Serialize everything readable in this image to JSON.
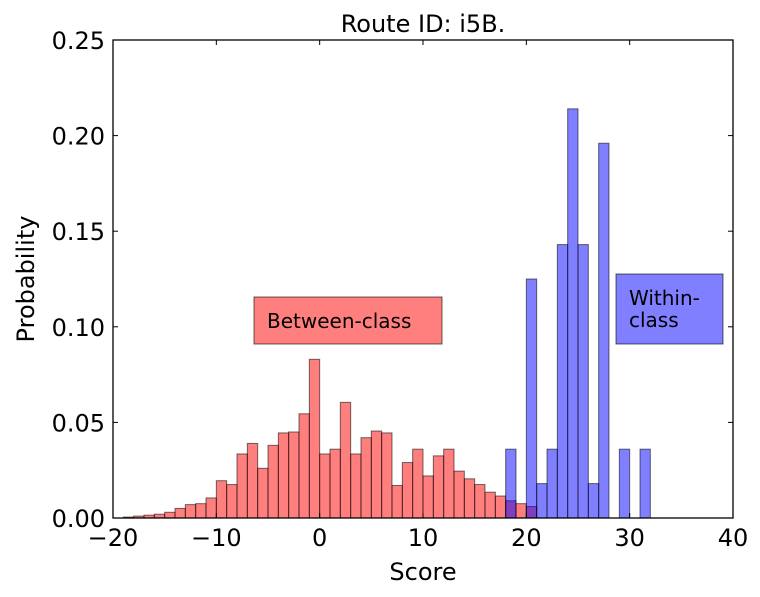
{
  "chart_data": {
    "type": "bar",
    "title": "Route ID: i5B.",
    "xlabel": "Score",
    "ylabel": "Probability",
    "xlim": [
      -20,
      40
    ],
    "ylim": [
      0,
      0.25
    ],
    "xticks": [
      -20,
      -10,
      0,
      10,
      20,
      30,
      40
    ],
    "yticks": [
      0.0,
      0.05,
      0.1,
      0.15,
      0.2,
      0.25
    ],
    "xtick_labels": [
      "−20",
      "−10",
      "0",
      "10",
      "20",
      "30",
      "40"
    ],
    "ytick_labels": [
      "0.00",
      "0.05",
      "0.10",
      "0.15",
      "0.20",
      "0.25"
    ],
    "grid": false,
    "series": [
      {
        "name": "Between-class",
        "color": "#ff0000",
        "alpha": 0.5,
        "bin_width": 1.0,
        "bins": [
          [
            -19,
            0.0005
          ],
          [
            -18,
            0.001
          ],
          [
            -17,
            0.0015
          ],
          [
            -16,
            0.002
          ],
          [
            -15,
            0.003
          ],
          [
            -14,
            0.005
          ],
          [
            -13,
            0.007
          ],
          [
            -12,
            0.0075
          ],
          [
            -11,
            0.0105
          ],
          [
            -10,
            0.0195
          ],
          [
            -9,
            0.0175
          ],
          [
            -8,
            0.0335
          ],
          [
            -7,
            0.039
          ],
          [
            -6,
            0.026
          ],
          [
            -5,
            0.038
          ],
          [
            -4,
            0.0445
          ],
          [
            -3,
            0.045
          ],
          [
            -2,
            0.0545
          ],
          [
            -1,
            0.083
          ],
          [
            0,
            0.0335
          ],
          [
            1,
            0.036
          ],
          [
            2,
            0.0605
          ],
          [
            3,
            0.0335
          ],
          [
            4,
            0.042
          ],
          [
            5,
            0.0455
          ],
          [
            6,
            0.0445
          ],
          [
            7,
            0.017
          ],
          [
            8,
            0.029
          ],
          [
            9,
            0.036
          ],
          [
            10,
            0.022
          ],
          [
            11,
            0.0325
          ],
          [
            12,
            0.036
          ],
          [
            13,
            0.0245
          ],
          [
            14,
            0.0205
          ],
          [
            15,
            0.0175
          ],
          [
            16,
            0.0135
          ],
          [
            17,
            0.0115
          ],
          [
            18,
            0.009
          ],
          [
            19,
            0.0075
          ],
          [
            20,
            0.006
          ]
        ]
      },
      {
        "name": "Within-class",
        "color": "#0000ff",
        "alpha": 0.5,
        "bin_width": 1.0,
        "bins": [
          [
            18,
            0.036
          ],
          [
            20,
            0.125
          ],
          [
            21,
            0.018
          ],
          [
            22,
            0.036
          ],
          [
            23,
            0.143
          ],
          [
            24,
            0.214
          ],
          [
            25,
            0.143
          ],
          [
            26,
            0.018
          ],
          [
            27,
            0.196
          ],
          [
            29,
            0.036
          ],
          [
            31,
            0.036
          ]
        ]
      }
    ],
    "annotations": [
      {
        "text": "Between-class",
        "series": 0
      },
      {
        "text": "Within-\nclass",
        "series": 1
      }
    ]
  }
}
